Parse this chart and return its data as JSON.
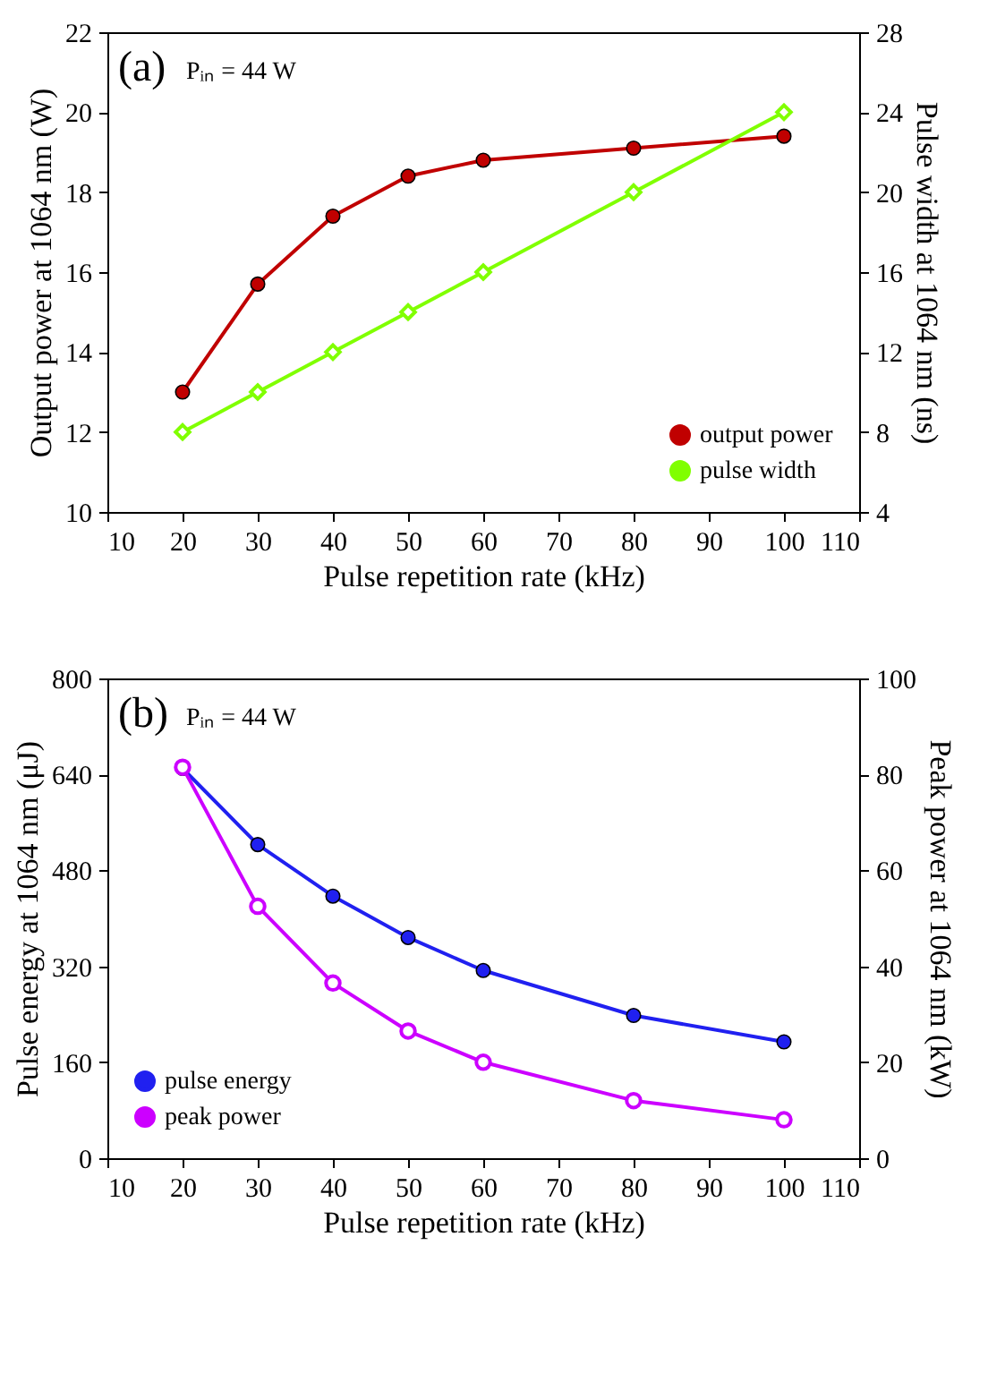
{
  "chart_data": [
    {
      "type": "line",
      "xlabel": "Pulse repetition rate (kHz)",
      "ylabel": "Output power at 1064 nm (W)",
      "y2label": "Pulse width at 1064 nm (ns)",
      "x": [
        20,
        30,
        40,
        50,
        60,
        80,
        100
      ],
      "xlim": [
        10,
        110
      ],
      "xticks": [
        10,
        20,
        30,
        40,
        50,
        60,
        70,
        80,
        90,
        100,
        110
      ],
      "ylim": [
        10,
        22
      ],
      "yticks": [
        10,
        12,
        14,
        16,
        18,
        20,
        22
      ],
      "y2lim": [
        4,
        28
      ],
      "y2ticks": [
        4,
        8,
        12,
        16,
        20,
        24,
        28
      ],
      "legend": "bottom right",
      "grid": false,
      "annotations": [
        "(a)",
        "Pᵢₙ = 44 W"
      ],
      "series": [
        {
          "name": "output power",
          "color": "#c00000",
          "marker": "circle",
          "values": [
            13.0,
            15.7,
            17.4,
            18.4,
            18.8,
            19.1,
            19.4
          ]
        },
        {
          "name": "pulse width",
          "color": "#80ff00",
          "marker": "diamond",
          "axis": "y2",
          "values": [
            8,
            10,
            12,
            14,
            16,
            20,
            24
          ]
        }
      ]
    },
    {
      "type": "line",
      "xlabel": "Pulse repetition rate (kHz)",
      "ylabel": "Pulse energy at 1064 nm (μJ)",
      "y2label": "Peak power at 1064 nm (kW)",
      "x": [
        20,
        30,
        40,
        50,
        60,
        80,
        100
      ],
      "xlim": [
        10,
        110
      ],
      "xticks": [
        10,
        20,
        30,
        40,
        50,
        60,
        70,
        80,
        90,
        100,
        110
      ],
      "ylim": [
        0,
        800
      ],
      "yticks": [
        0,
        160,
        320,
        480,
        640,
        800
      ],
      "y2lim": [
        0,
        100
      ],
      "y2ticks": [
        0,
        20,
        40,
        60,
        80,
        100
      ],
      "legend": "bottom left",
      "grid": false,
      "annotations": [
        "(b)",
        "Pᵢₙ = 44 W"
      ],
      "series": [
        {
          "name": "pulse energy",
          "color": "#2020f0",
          "marker": "circle",
          "values": [
            650,
            523,
            437,
            368,
            313,
            238,
            194
          ]
        },
        {
          "name": "peak power",
          "color": "#cc00ff",
          "marker": "circle",
          "axis": "y2",
          "values": [
            81.5,
            52.5,
            36.5,
            26.5,
            20,
            12,
            8
          ]
        }
      ]
    }
  ]
}
